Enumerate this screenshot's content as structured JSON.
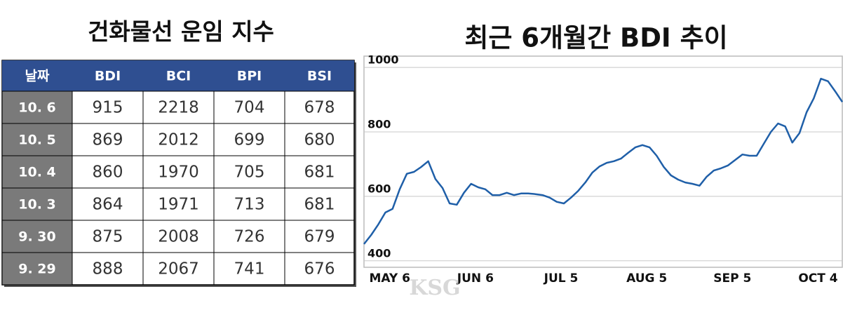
{
  "table": {
    "title": "건화물선 운임 지수",
    "headers": [
      "날짜",
      "BDI",
      "BCI",
      "BPI",
      "BSI"
    ],
    "rows": [
      [
        "10. 6",
        915,
        2218,
        704,
        678
      ],
      [
        "10. 5",
        869,
        2012,
        699,
        680
      ],
      [
        "10. 4",
        860,
        1970,
        705,
        681
      ],
      [
        "10. 3",
        864,
        1971,
        713,
        681
      ],
      [
        "9. 30",
        875,
        2008,
        726,
        679
      ],
      [
        "9. 29",
        888,
        2067,
        741,
        676
      ]
    ]
  },
  "chart_data": {
    "type": "line",
    "title": "최근 6개월간 BDI 추이",
    "categories": [
      null,
      null,
      null,
      null,
      "MAY 6",
      null,
      null,
      null,
      null,
      null,
      null,
      null,
      null,
      null,
      null,
      null,
      "JUN 6",
      null,
      null,
      null,
      null,
      null,
      null,
      null,
      null,
      null,
      null,
      null,
      "JUL 5",
      null,
      null,
      null,
      null,
      null,
      null,
      null,
      null,
      null,
      null,
      null,
      "AUG 5",
      null,
      null,
      null,
      null,
      null,
      null,
      null,
      null,
      null,
      null,
      null,
      "SEP 5",
      null,
      null,
      null,
      null,
      null,
      null,
      null,
      null,
      null,
      null,
      null,
      "OCT 4",
      null,
      null,
      null
    ],
    "values": [
      452,
      480,
      513,
      550,
      561,
      622,
      670,
      676,
      691,
      709,
      654,
      626,
      578,
      574,
      611,
      639,
      628,
      622,
      604,
      604,
      611,
      604,
      609,
      609,
      607,
      604,
      596,
      583,
      578,
      596,
      617,
      643,
      674,
      693,
      704,
      709,
      717,
      735,
      752,
      759,
      752,
      726,
      691,
      665,
      652,
      643,
      639,
      633,
      661,
      680,
      687,
      696,
      713,
      730,
      726,
      726,
      763,
      800,
      826,
      817,
      767,
      796,
      861,
      904,
      965,
      957,
      926,
      893
    ],
    "color": "#1f5fa8",
    "ylim": [
      380,
      1035
    ],
    "yticks": [
      400,
      600,
      800,
      1000
    ],
    "grid": true
  },
  "watermark": "KSG"
}
